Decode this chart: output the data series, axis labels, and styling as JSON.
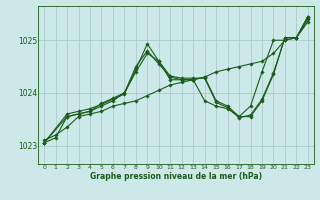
{
  "xlabel": "Graphe pression niveau de la mer (hPa)",
  "bg_color": "#cce8e8",
  "grid_color": "#aacccc",
  "line_color": "#1a5c1a",
  "xlim": [
    -0.5,
    23.5
  ],
  "ylim": [
    1022.65,
    1025.65
  ],
  "yticks": [
    1023,
    1024,
    1025
  ],
  "xticks": [
    0,
    1,
    2,
    3,
    4,
    5,
    6,
    7,
    8,
    9,
    10,
    11,
    12,
    13,
    14,
    15,
    16,
    17,
    18,
    19,
    20,
    21,
    22,
    23
  ],
  "series": [
    {
      "x": [
        0,
        1,
        2,
        3,
        4,
        5,
        6,
        7,
        8,
        9,
        10,
        11,
        12,
        13,
        14,
        15,
        16,
        17,
        18,
        19,
        20,
        21,
        22,
        23
      ],
      "y": [
        1023.1,
        1023.2,
        1023.35,
        1023.55,
        1023.6,
        1023.65,
        1023.75,
        1023.8,
        1023.85,
        1023.95,
        1024.05,
        1024.15,
        1024.2,
        1024.25,
        1024.3,
        1024.4,
        1024.45,
        1024.5,
        1024.55,
        1024.6,
        1024.75,
        1025.0,
        1025.05,
        1025.35
      ]
    },
    {
      "x": [
        0,
        1,
        2,
        3,
        4,
        5,
        6,
        7,
        8,
        9,
        10,
        11,
        12,
        13,
        14,
        15,
        16,
        17,
        18,
        19,
        20,
        21,
        22,
        23
      ],
      "y": [
        1023.05,
        1023.15,
        1023.55,
        1023.6,
        1023.65,
        1023.75,
        1023.85,
        1024.0,
        1024.5,
        1024.8,
        1024.55,
        1024.3,
        1024.25,
        1024.25,
        1023.85,
        1023.75,
        1023.7,
        1023.55,
        1023.75,
        1024.4,
        1025.0,
        1025.0,
        1025.05,
        1025.4
      ]
    },
    {
      "x": [
        0,
        2,
        3,
        4,
        5,
        6,
        7,
        8,
        9,
        10,
        11,
        12,
        13,
        14,
        15,
        16,
        17,
        18,
        19,
        20,
        21,
        22,
        23
      ],
      "y": [
        1023.05,
        1023.55,
        1023.6,
        1023.65,
        1023.8,
        1023.9,
        1024.0,
        1024.4,
        1024.75,
        1024.6,
        1024.25,
        1024.25,
        1024.25,
        1024.3,
        1023.85,
        1023.75,
        1023.55,
        1023.55,
        1023.85,
        1024.35,
        1025.05,
        1025.05,
        1025.45
      ]
    },
    {
      "x": [
        0,
        2,
        3,
        4,
        5,
        6,
        7,
        8,
        9,
        10,
        11,
        12,
        13,
        14,
        15,
        16,
        17,
        18,
        19,
        20,
        21,
        22,
        23
      ],
      "y": [
        1023.05,
        1023.6,
        1023.65,
        1023.7,
        1023.78,
        1023.88,
        1023.98,
        1024.45,
        1024.93,
        1024.6,
        1024.32,
        1024.28,
        1024.28,
        1024.28,
        1023.82,
        1023.72,
        1023.53,
        1023.58,
        1023.88,
        1024.38,
        1025.05,
        1025.05,
        1025.45
      ]
    }
  ]
}
